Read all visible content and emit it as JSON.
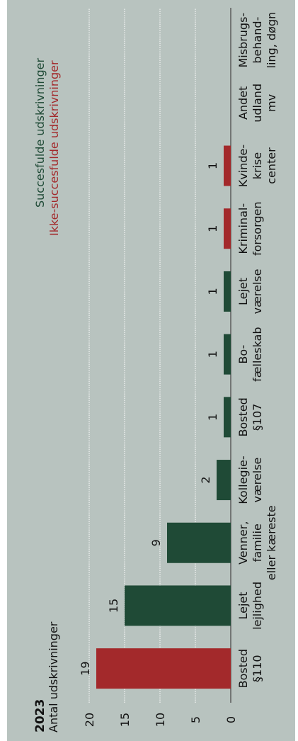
{
  "chart_data": {
    "type": "bar",
    "title": "2023",
    "ylabel": "Antal udskrivninger",
    "ylim": [
      0,
      20
    ],
    "yticks": [
      0,
      5,
      10,
      15,
      20
    ],
    "grid": true,
    "orientation": "rotated-90",
    "legend_position": "top-right",
    "categories": [
      [
        "Bosted",
        "§110"
      ],
      [
        "Lejet",
        "lejlighed"
      ],
      [
        "Venner,",
        "familie",
        "eller kæreste"
      ],
      [
        "Kollegie-",
        "værelse"
      ],
      [
        "Bosted",
        "§107"
      ],
      [
        "Bo-",
        "fælleskab"
      ],
      [
        "Lejet",
        "værelse"
      ],
      [
        "Kriminal-",
        "forsorgen"
      ],
      [
        "Kvinde-",
        "krise",
        "center"
      ],
      [
        "Andet",
        "udland",
        "mv"
      ],
      [
        "Misbrugs-",
        "behand-",
        "ling, døgn"
      ]
    ],
    "values": [
      19,
      15,
      9,
      2,
      1,
      1,
      1,
      1,
      1,
      0,
      0
    ],
    "value_labels": [
      "19",
      "15",
      "9",
      "2",
      "1",
      "1",
      "1",
      "1",
      "1",
      "",
      ""
    ],
    "outcome": [
      "ikke",
      "succes",
      "succes",
      "succes",
      "succes",
      "succes",
      "succes",
      "ikke",
      "ikke",
      "none",
      "none"
    ],
    "series": [
      {
        "name": "Succesfulde udskrivninger",
        "key": "succes",
        "color": "#1f4a36"
      },
      {
        "name": "Ikke-succesfulde udskrivninger",
        "key": "ikke",
        "color": "#a3292b"
      }
    ]
  },
  "colors": {
    "panel_bg": "#b8c3bf",
    "text": "#111111",
    "grid": "#ffffff",
    "baseline": "#444444"
  }
}
